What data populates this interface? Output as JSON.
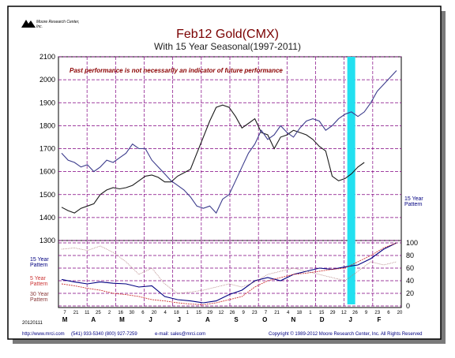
{
  "header": {
    "logo_text": "Moore Research Center, Inc.",
    "title": "Feb12 Gold(CMX)",
    "subtitle": "With 15 Year Seasonal(1997-2011)",
    "disclaimer": "Past performance is not necessarily an indicator of future performance"
  },
  "footer": {
    "website": "http://www.mrci.com",
    "phone": "(541) 933-5340 (800) 927-7259",
    "email": "e-mail: sales@mrci.com",
    "copyright": "Copyright © 1989-2012 Moore Research Center, Inc. All Rights Reserved",
    "datestamp": "20120111"
  },
  "left_labels": {
    "fifteen": "15 Year Pattern",
    "five": "5 Year Pattern",
    "thirty": "30 Year Pattern"
  },
  "right_label": "15 Year Pattern",
  "colors": {
    "border": "#000000",
    "shadow": "#7a7a7a",
    "grid": "#800080",
    "price": "#1b1b1b",
    "seasonal": "#3c3c8c",
    "five_year": "#cc3333",
    "thirty_year": "#b08080",
    "highlight": "#22e0f0",
    "title": "#7a0000"
  },
  "chart_data": [
    {
      "type": "line",
      "title": "Feb12 Gold(CMX)",
      "subtitle": "With 15 Year Seasonal(1997-2011)",
      "ylim": [
        1300,
        2100
      ],
      "y_ticks": [
        1300,
        1400,
        1500,
        1600,
        1700,
        1800,
        1900,
        2000,
        2100
      ],
      "x_day_labels": [
        "7",
        "21",
        "11",
        "25",
        "2",
        "16",
        "30",
        "6",
        "20",
        "4",
        "18",
        "1",
        "15",
        "29",
        "12",
        "26",
        "9",
        "23",
        "7",
        "21",
        "4",
        "18",
        "1",
        "15",
        "29",
        "12",
        "26",
        "9",
        "23",
        "6",
        "20"
      ],
      "x_month_labels": [
        "M",
        "A",
        "M",
        "J",
        "J",
        "A",
        "S",
        "O",
        "N",
        "D",
        "J",
        "F"
      ],
      "highlight_band": "January",
      "series": [
        {
          "name": "Feb12 Gold(CMX)",
          "points": [
            [
              0,
              1445
            ],
            [
              2,
              1430
            ],
            [
              4,
              1420
            ],
            [
              6,
              1440
            ],
            [
              8,
              1450
            ],
            [
              10,
              1460
            ],
            [
              12,
              1500
            ],
            [
              14,
              1520
            ],
            [
              16,
              1530
            ],
            [
              18,
              1525
            ],
            [
              20,
              1530
            ],
            [
              22,
              1540
            ],
            [
              24,
              1560
            ],
            [
              26,
              1580
            ],
            [
              28,
              1585
            ],
            [
              30,
              1575
            ],
            [
              32,
              1555
            ],
            [
              34,
              1555
            ],
            [
              36,
              1580
            ],
            [
              38,
              1595
            ],
            [
              40,
              1610
            ],
            [
              42,
              1680
            ],
            [
              44,
              1750
            ],
            [
              46,
              1820
            ],
            [
              48,
              1880
            ],
            [
              50,
              1890
            ],
            [
              52,
              1880
            ],
            [
              54,
              1840
            ],
            [
              56,
              1790
            ],
            [
              58,
              1810
            ],
            [
              60,
              1830
            ],
            [
              62,
              1770
            ],
            [
              64,
              1760
            ],
            [
              66,
              1700
            ],
            [
              68,
              1750
            ],
            [
              70,
              1760
            ],
            [
              72,
              1780
            ],
            [
              74,
              1770
            ],
            [
              76,
              1760
            ],
            [
              78,
              1740
            ],
            [
              80,
              1710
            ],
            [
              82,
              1690
            ],
            [
              84,
              1580
            ],
            [
              86,
              1560
            ],
            [
              88,
              1570
            ],
            [
              90,
              1590
            ],
            [
              92,
              1620
            ],
            [
              94,
              1640
            ]
          ]
        },
        {
          "name": "15 Year Pattern",
          "points": [
            [
              0,
              1680
            ],
            [
              2,
              1650
            ],
            [
              4,
              1640
            ],
            [
              6,
              1620
            ],
            [
              8,
              1630
            ],
            [
              10,
              1600
            ],
            [
              12,
              1620
            ],
            [
              14,
              1650
            ],
            [
              16,
              1640
            ],
            [
              18,
              1660
            ],
            [
              20,
              1680
            ],
            [
              22,
              1720
            ],
            [
              24,
              1700
            ],
            [
              26,
              1700
            ],
            [
              28,
              1650
            ],
            [
              30,
              1620
            ],
            [
              32,
              1590
            ],
            [
              34,
              1560
            ],
            [
              36,
              1540
            ],
            [
              38,
              1520
            ],
            [
              40,
              1490
            ],
            [
              42,
              1450
            ],
            [
              44,
              1440
            ],
            [
              46,
              1450
            ],
            [
              48,
              1420
            ],
            [
              50,
              1480
            ],
            [
              52,
              1500
            ],
            [
              54,
              1560
            ],
            [
              56,
              1620
            ],
            [
              58,
              1680
            ],
            [
              60,
              1720
            ],
            [
              62,
              1780
            ],
            [
              64,
              1740
            ],
            [
              66,
              1760
            ],
            [
              68,
              1800
            ],
            [
              70,
              1770
            ],
            [
              72,
              1750
            ],
            [
              74,
              1790
            ],
            [
              76,
              1820
            ],
            [
              78,
              1830
            ],
            [
              80,
              1820
            ],
            [
              82,
              1780
            ],
            [
              84,
              1800
            ],
            [
              86,
              1830
            ],
            [
              88,
              1850
            ],
            [
              90,
              1860
            ],
            [
              92,
              1840
            ],
            [
              94,
              1860
            ],
            [
              96,
              1900
            ],
            [
              98,
              1950
            ],
            [
              100,
              1980
            ],
            [
              102,
              2010
            ],
            [
              104,
              2040
            ]
          ]
        }
      ]
    },
    {
      "type": "line",
      "ylim": [
        0,
        100
      ],
      "y_ticks": [
        0,
        20,
        40,
        60,
        80,
        100
      ],
      "series": [
        {
          "name": "15 Year Pattern",
          "points": [
            [
              0,
              42
            ],
            [
              4,
              38
            ],
            [
              8,
              35
            ],
            [
              12,
              38
            ],
            [
              16,
              36
            ],
            [
              20,
              35
            ],
            [
              24,
              30
            ],
            [
              28,
              32
            ],
            [
              32,
              15
            ],
            [
              36,
              10
            ],
            [
              40,
              8
            ],
            [
              44,
              5
            ],
            [
              48,
              8
            ],
            [
              52,
              18
            ],
            [
              56,
              25
            ],
            [
              60,
              40
            ],
            [
              64,
              45
            ],
            [
              68,
              40
            ],
            [
              72,
              50
            ],
            [
              76,
              55
            ],
            [
              80,
              60
            ],
            [
              84,
              58
            ],
            [
              88,
              62
            ],
            [
              92,
              65
            ],
            [
              96,
              75
            ],
            [
              100,
              90
            ],
            [
              104,
              100
            ]
          ]
        },
        {
          "name": "5 Year Pattern",
          "points": [
            [
              0,
              35
            ],
            [
              4,
              32
            ],
            [
              8,
              28
            ],
            [
              12,
              25
            ],
            [
              16,
              20
            ],
            [
              20,
              18
            ],
            [
              24,
              15
            ],
            [
              28,
              10
            ],
            [
              32,
              8
            ],
            [
              36,
              5
            ],
            [
              40,
              3
            ],
            [
              44,
              2
            ],
            [
              48,
              5
            ],
            [
              52,
              10
            ],
            [
              56,
              15
            ],
            [
              60,
              30
            ],
            [
              64,
              40
            ],
            [
              68,
              45
            ],
            [
              72,
              50
            ],
            [
              76,
              52
            ],
            [
              80,
              55
            ],
            [
              84,
              58
            ],
            [
              88,
              60
            ],
            [
              92,
              70
            ],
            [
              96,
              80
            ],
            [
              100,
              92
            ],
            [
              104,
              100
            ]
          ]
        },
        {
          "name": "30 Year Pattern",
          "points": [
            [
              0,
              90
            ],
            [
              4,
              92
            ],
            [
              8,
              88
            ],
            [
              12,
              95
            ],
            [
              16,
              85
            ],
            [
              20,
              70
            ],
            [
              24,
              50
            ],
            [
              28,
              60
            ],
            [
              32,
              35
            ],
            [
              36,
              20
            ],
            [
              40,
              22
            ],
            [
              44,
              25
            ],
            [
              48,
              30
            ],
            [
              52,
              35
            ],
            [
              56,
              30
            ],
            [
              60,
              38
            ],
            [
              64,
              50
            ],
            [
              68,
              55
            ],
            [
              72,
              60
            ],
            [
              76,
              55
            ],
            [
              80,
              50
            ],
            [
              84,
              45
            ],
            [
              88,
              40
            ],
            [
              92,
              55
            ],
            [
              96,
              70
            ],
            [
              100,
              65
            ],
            [
              104,
              70
            ]
          ]
        }
      ]
    }
  ]
}
